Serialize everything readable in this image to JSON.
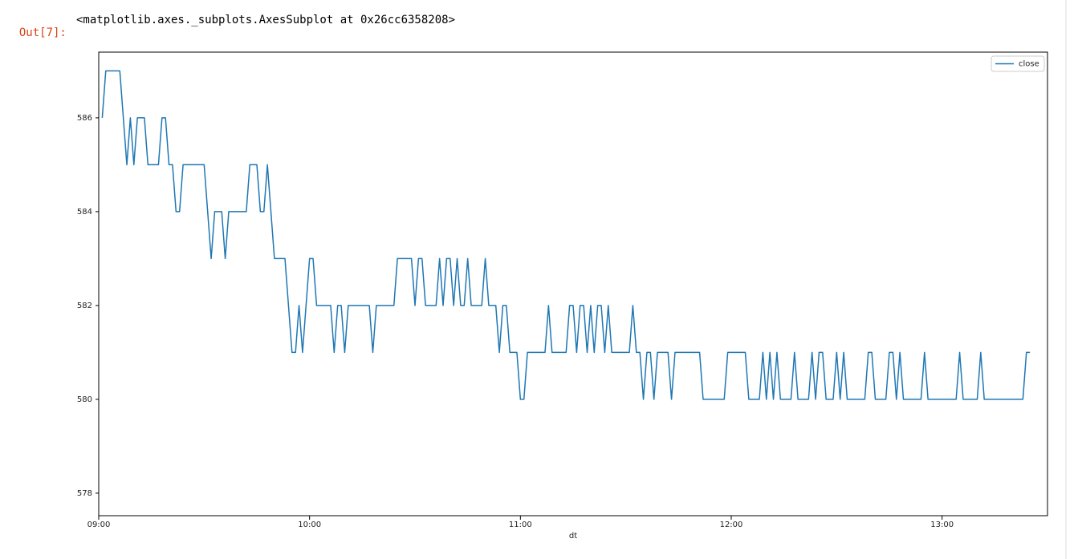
{
  "prompt": "Out[7]:",
  "output_text": "<matplotlib.axes._subplots.AxesSubplot at 0x26cc6358208>",
  "chart_data": {
    "type": "line",
    "xlabel": "dt",
    "x": [
      "09:01",
      "09:02",
      "09:06",
      "09:08",
      "09:09",
      "09:10",
      "09:11",
      "09:13",
      "09:14",
      "09:17",
      "09:18",
      "09:19",
      "09:20",
      "09:21",
      "09:22",
      "09:23",
      "09:24",
      "09:30",
      "09:32",
      "09:33",
      "09:35",
      "09:36",
      "09:37",
      "09:42",
      "09:43",
      "09:45",
      "09:46",
      "09:47",
      "09:48",
      "09:50",
      "09:53",
      "09:55",
      "09:56",
      "09:57",
      "09:58",
      "10:00",
      "10:01",
      "10:02",
      "10:06",
      "10:07",
      "10:08",
      "10:09",
      "10:10",
      "10:11",
      "10:17",
      "10:18",
      "10:19",
      "10:24",
      "10:25",
      "10:29",
      "10:30",
      "10:31",
      "10:32",
      "10:33",
      "10:36",
      "10:37",
      "10:38",
      "10:39",
      "10:40",
      "10:41",
      "10:42",
      "10:43",
      "10:44",
      "10:45",
      "10:46",
      "10:49",
      "10:50",
      "10:51",
      "10:53",
      "10:54",
      "10:55",
      "10:56",
      "10:57",
      "10:59",
      "11:00",
      "11:01",
      "11:02",
      "11:07",
      "11:08",
      "11:09",
      "11:13",
      "11:14",
      "11:15",
      "11:16",
      "11:17",
      "11:18",
      "11:19",
      "11:20",
      "11:21",
      "11:22",
      "11:23",
      "11:24",
      "11:25",
      "11:26",
      "11:31",
      "11:32",
      "11:33",
      "11:34",
      "11:35",
      "11:36",
      "11:37",
      "11:38",
      "11:39",
      "11:42",
      "11:43",
      "11:44",
      "11:51",
      "11:52",
      "11:58",
      "11:59",
      "12:04",
      "12:05",
      "12:08",
      "12:09",
      "12:10",
      "12:11",
      "12:12",
      "12:13",
      "12:14",
      "12:17",
      "12:18",
      "12:19",
      "12:22",
      "12:23",
      "12:24",
      "12:25",
      "12:26",
      "12:27",
      "12:29",
      "12:30",
      "12:31",
      "12:32",
      "12:33",
      "12:38",
      "12:39",
      "12:40",
      "12:41",
      "12:44",
      "12:45",
      "12:46",
      "12:47",
      "12:48",
      "12:49",
      "12:54",
      "12:55",
      "12:56",
      "13:04",
      "13:05",
      "13:06",
      "13:10",
      "13:11",
      "13:12",
      "13:23",
      "13:24",
      "13:25"
    ],
    "series": [
      {
        "name": "close",
        "color": "#1f77b4",
        "values": [
          586,
          587,
          587,
          585,
          586,
          585,
          586,
          586,
          585,
          585,
          586,
          586,
          585,
          585,
          584,
          584,
          585,
          585,
          583,
          584,
          584,
          583,
          584,
          584,
          585,
          585,
          584,
          584,
          585,
          583,
          583,
          581,
          581,
          582,
          581,
          583,
          583,
          582,
          582,
          581,
          582,
          582,
          581,
          582,
          582,
          581,
          582,
          582,
          583,
          583,
          582,
          583,
          583,
          582,
          582,
          583,
          582,
          583,
          583,
          582,
          583,
          582,
          582,
          583,
          582,
          582,
          583,
          582,
          582,
          581,
          582,
          582,
          581,
          581,
          580,
          580,
          581,
          581,
          582,
          581,
          581,
          582,
          582,
          581,
          582,
          582,
          581,
          582,
          581,
          582,
          582,
          581,
          582,
          581,
          581,
          582,
          581,
          581,
          580,
          581,
          581,
          580,
          581,
          581,
          580,
          581,
          581,
          580,
          580,
          581,
          581,
          580,
          580,
          581,
          580,
          581,
          580,
          581,
          580,
          580,
          581,
          580,
          580,
          581,
          580,
          581,
          581,
          580,
          580,
          581,
          580,
          581,
          580,
          580,
          581,
          581,
          580,
          580,
          581,
          581,
          580,
          581,
          580,
          580,
          581,
          580,
          580,
          581,
          580,
          580,
          581,
          580,
          580,
          581,
          581
        ]
      }
    ],
    "xlim": [
      "09:00",
      "13:30"
    ],
    "xticks": [
      "09:00",
      "10:00",
      "11:00",
      "12:00",
      "13:00"
    ],
    "ylim": [
      577.52,
      587.4
    ],
    "yticks": [
      578,
      580,
      582,
      584,
      586
    ],
    "legend": "upper right",
    "grid": false
  }
}
